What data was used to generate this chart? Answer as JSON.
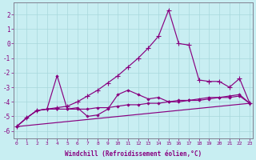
{
  "xlabel": "Windchill (Refroidissement éolien,°C)",
  "bg_color": "#c8eef2",
  "line_color": "#880080",
  "grid_color": "#a8d8dc",
  "ylim": [
    -6.5,
    2.8
  ],
  "xlim": [
    -0.3,
    23.3
  ],
  "yticks": [
    -6,
    -5,
    -4,
    -3,
    -2,
    -1,
    0,
    1,
    2
  ],
  "xticks": [
    0,
    1,
    2,
    3,
    4,
    5,
    6,
    7,
    8,
    9,
    10,
    11,
    12,
    13,
    14,
    15,
    16,
    17,
    18,
    19,
    20,
    21,
    22,
    23
  ],
  "line_flat": {
    "x": [
      0,
      1,
      2,
      3,
      4,
      5,
      6,
      7,
      8,
      9,
      10,
      11,
      12,
      13,
      14,
      15,
      16,
      17,
      18,
      19,
      20,
      21,
      22,
      23
    ],
    "y": [
      -5.7,
      -5.1,
      -4.6,
      -4.5,
      -4.5,
      -4.5,
      -4.5,
      -4.5,
      -4.4,
      -4.4,
      -4.3,
      -4.2,
      -4.2,
      -4.1,
      -4.1,
      -4.0,
      -4.0,
      -3.9,
      -3.9,
      -3.8,
      -3.7,
      -3.7,
      -3.6,
      -4.1
    ]
  },
  "line_smooth": {
    "x": [
      0,
      1,
      2,
      3,
      4,
      5,
      6,
      7,
      8,
      9,
      10,
      11,
      12,
      13,
      14,
      15,
      16,
      17,
      18,
      19,
      20,
      21,
      22,
      23
    ],
    "y": [
      -5.7,
      -5.1,
      -4.6,
      -4.5,
      -4.4,
      -4.3,
      -4.0,
      -3.6,
      -3.2,
      -2.7,
      -2.2,
      -1.6,
      -1.0,
      -0.3,
      0.5,
      2.3,
      0.0,
      -0.1,
      -2.5,
      -2.6,
      -2.6,
      -3.0,
      -2.4,
      -4.1
    ]
  },
  "line_spike": {
    "x": [
      0,
      1,
      2,
      3,
      4,
      5,
      6,
      7,
      8,
      9,
      10,
      11,
      12,
      13,
      14,
      15,
      16,
      17,
      18,
      19,
      20,
      21,
      22,
      23
    ],
    "y": [
      -5.7,
      -5.1,
      -4.6,
      -4.5,
      -2.2,
      -4.5,
      -4.4,
      -5.0,
      -4.9,
      -4.5,
      -3.5,
      -3.2,
      -3.5,
      -3.8,
      -3.7,
      -4.0,
      -3.9,
      -3.9,
      -3.8,
      -3.7,
      -3.7,
      -3.6,
      -3.5,
      -4.1
    ]
  },
  "line_diagonal": {
    "x": [
      0,
      23
    ],
    "y": [
      -5.7,
      -4.1
    ]
  }
}
